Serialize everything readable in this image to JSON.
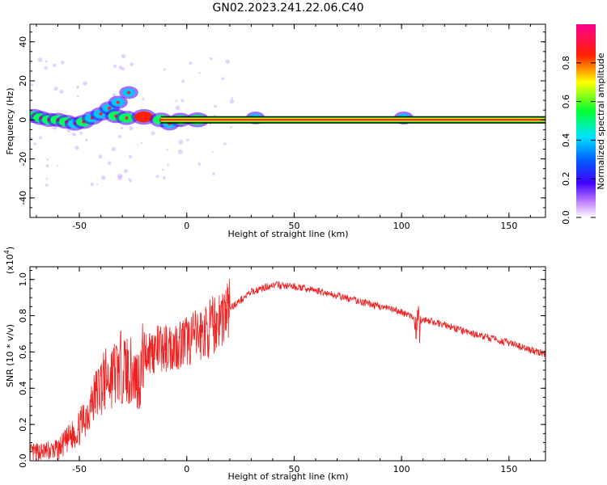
{
  "figure": {
    "title": "GN02.2023.241.22.06.C40"
  },
  "chart_data": [
    {
      "type": "heatmap",
      "xlabel": "Height of straight line (km)",
      "ylabel": "Frequency (Hz)",
      "xlim": [
        -73,
        167
      ],
      "ylim": [
        -50,
        49
      ],
      "xticks": [
        -50,
        0,
        50,
        100,
        150
      ],
      "yticks": [
        -40,
        -20,
        0,
        20,
        40
      ],
      "carrier_frequency_hz": 0,
      "grid": false,
      "colorbar": {
        "label": "Normalized spectral amplitude",
        "range": [
          0,
          1
        ],
        "ticks": [
          0.0,
          0.2,
          0.4,
          0.6,
          0.8
        ],
        "colors": [
          "#ffffff",
          "#7a00ff",
          "#0000ff",
          "#00e5ff",
          "#00ff00",
          "#ffff00",
          "#ff0000",
          "#ff0090"
        ]
      },
      "spectral_blobs": [
        {
          "x": -71,
          "y": 2,
          "amp": 0.55
        },
        {
          "x": -68,
          "y": 1,
          "amp": 0.55
        },
        {
          "x": -64,
          "y": 0,
          "amp": 0.55
        },
        {
          "x": -60,
          "y": 0,
          "amp": 0.55
        },
        {
          "x": -56,
          "y": -1,
          "amp": 0.55
        },
        {
          "x": -52,
          "y": -2,
          "amp": 0.5
        },
        {
          "x": -48,
          "y": -1,
          "amp": 0.55
        },
        {
          "x": -44,
          "y": 1,
          "amp": 0.5
        },
        {
          "x": -40,
          "y": 3,
          "amp": 0.5
        },
        {
          "x": -36,
          "y": 6,
          "amp": 0.45
        },
        {
          "x": -32,
          "y": 9,
          "amp": 0.35
        },
        {
          "x": -27,
          "y": 14,
          "amp": 0.3
        },
        {
          "x": -33,
          "y": 2,
          "amp": 0.6
        },
        {
          "x": -28,
          "y": 1,
          "amp": 0.6
        },
        {
          "x": -20,
          "y": 1.5,
          "amp": 0.9
        },
        {
          "x": -12,
          "y": 0,
          "amp": 0.7
        },
        {
          "x": -8,
          "y": -2,
          "amp": 0.4
        },
        {
          "x": -3,
          "y": 0,
          "amp": 0.6
        },
        {
          "x": 5,
          "y": 0,
          "amp": 0.75
        },
        {
          "x": 32,
          "y": 1,
          "amp": 0.3
        },
        {
          "x": 101,
          "y": 1,
          "amp": 0.35
        }
      ]
    },
    {
      "type": "line",
      "xlabel": "Height of straight line (km)",
      "ylabel": "SNR (10 * v/v)",
      "scale_label": "(x10",
      "scale_exponent": "4",
      "xlim": [
        -73,
        167
      ],
      "ylim": [
        0,
        1.07
      ],
      "xticks": [
        -50,
        0,
        50,
        100,
        150
      ],
      "yticks": [
        0.0,
        0.2,
        0.4,
        0.6,
        0.8,
        1.0
      ],
      "grid": false,
      "color": "#ee2020",
      "envelope": {
        "x": [
          -73,
          -60,
          -50,
          -40,
          -30,
          -22,
          -20,
          -10,
          0,
          10,
          20,
          30,
          40,
          50,
          60,
          70,
          80,
          90,
          100,
          104,
          107,
          110,
          120,
          130,
          140,
          150,
          160,
          167
        ],
        "y": [
          0.04,
          0.06,
          0.18,
          0.42,
          0.52,
          0.45,
          0.6,
          0.62,
          0.66,
          0.72,
          0.84,
          0.93,
          0.97,
          0.96,
          0.94,
          0.91,
          0.88,
          0.85,
          0.82,
          0.8,
          0.76,
          0.78,
          0.75,
          0.71,
          0.68,
          0.65,
          0.61,
          0.59
        ]
      }
    }
  ]
}
